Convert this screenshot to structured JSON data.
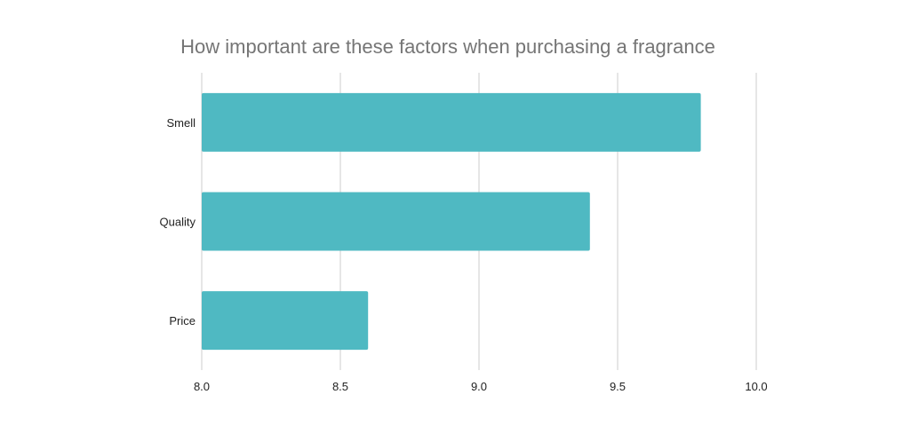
{
  "chart_data": {
    "type": "bar",
    "orientation": "horizontal",
    "title": "How important are these factors when purchasing a fragrance",
    "xlabel": "",
    "ylabel": "",
    "categories": [
      "Smell",
      "Quality",
      "Price"
    ],
    "values": [
      9.8,
      9.4,
      8.6
    ],
    "xlim": [
      8.0,
      10.0
    ],
    "ticks": [
      "8.0",
      "8.5",
      "9.0",
      "9.5",
      "10.0"
    ],
    "grid": true,
    "legend": "none",
    "bar_color": "#4fb9c2"
  }
}
